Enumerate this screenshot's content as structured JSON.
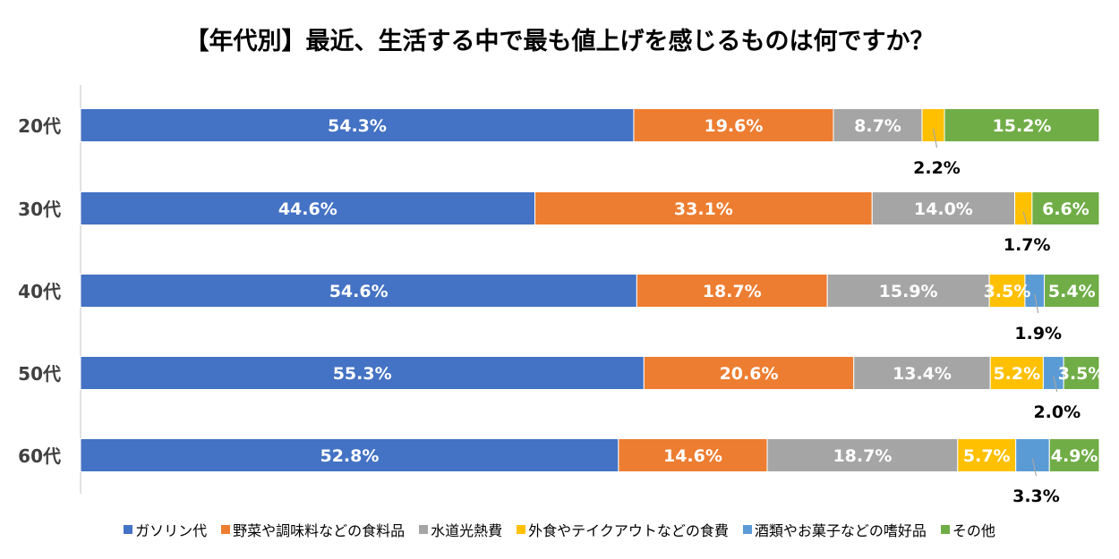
{
  "chart_data": {
    "type": "bar",
    "orientation": "horizontal",
    "stacked": true,
    "title": "【年代別】最近、生活する中で最も値上げを感じるものは何ですか？",
    "categories": [
      "20代",
      "30代",
      "40代",
      "50代",
      "60代"
    ],
    "series": [
      {
        "name": "ガソリン代",
        "color": "#4472C4",
        "values": [
          54.3,
          44.6,
          54.6,
          55.3,
          52.8
        ]
      },
      {
        "name": "野菜や調味料などの食料品",
        "color": "#ED7D31",
        "values": [
          19.6,
          33.1,
          18.7,
          20.6,
          14.6
        ]
      },
      {
        "name": "水道光熱費",
        "color": "#A5A5A5",
        "values": [
          8.7,
          14.0,
          15.9,
          13.4,
          18.7
        ]
      },
      {
        "name": "外食やテイクアウトなどの食費",
        "color": "#FFC000",
        "values": [
          2.2,
          1.7,
          3.5,
          5.2,
          5.7
        ]
      },
      {
        "name": "酒類やお菓子などの嗜好品",
        "color": "#5B9BD5",
        "values": [
          0.0,
          0.0,
          1.9,
          2.0,
          3.3
        ]
      },
      {
        "name": "その他",
        "color": "#70AD47",
        "values": [
          15.2,
          6.6,
          5.4,
          3.5,
          4.9
        ]
      }
    ],
    "data_labels": [
      [
        "54.3%",
        "19.6%",
        "8.7%",
        "2.2%",
        "",
        "15.2%"
      ],
      [
        "44.6%",
        "33.1%",
        "14.0%",
        "1.7%",
        "",
        "6.6%"
      ],
      [
        "54.6%",
        "18.7%",
        "15.9%",
        "3.5%",
        "1.9%",
        "5.4%"
      ],
      [
        "55.3%",
        "20.6%",
        "13.4%",
        "5.2%",
        "2.0%",
        "3.5%"
      ],
      [
        "52.8%",
        "14.6%",
        "18.7%",
        "5.7%",
        "3.3%",
        "4.9%"
      ]
    ],
    "callout_labels": [
      {
        "category": "20代",
        "series": "外食やテイクアウトなどの食費",
        "label": "2.2%"
      },
      {
        "category": "30代",
        "series": "外食やテイクアウトなどの食費",
        "label": "1.7%"
      },
      {
        "category": "40代",
        "series": "酒類やお菓子などの嗜好品",
        "label": "1.9%"
      },
      {
        "category": "50代",
        "series": "酒類やお菓子などの嗜好品",
        "label": "2.0%"
      },
      {
        "category": "60代",
        "series": "酒類やお菓子などの嗜好品",
        "label": "3.3%"
      }
    ],
    "xlim": [
      0,
      100
    ],
    "legend_position": "bottom",
    "grid": false
  }
}
